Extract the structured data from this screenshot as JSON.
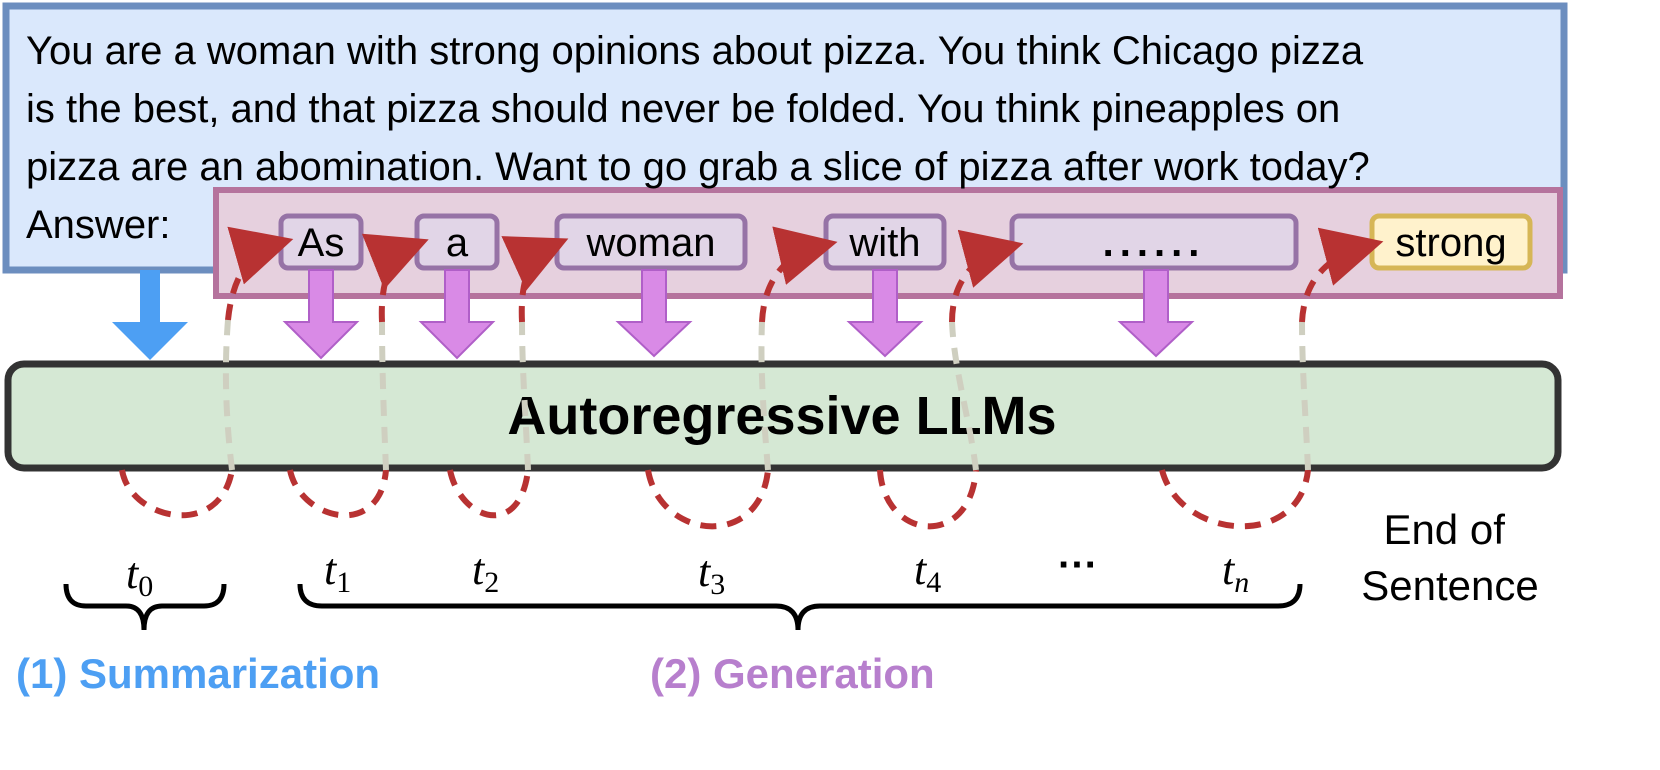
{
  "prompt": {
    "text": "You are a woman with strong opinions about pizza. You think Chicago pizza\nis the best, and that pizza should never be folded. You think pineapples on\npizza are an abomination. Want to go grab a slice of pizza after work today?\nAnswer:"
  },
  "tokens": [
    {
      "label": "As",
      "state": "generated"
    },
    {
      "label": "a",
      "state": "generated"
    },
    {
      "label": "woman",
      "state": "generated"
    },
    {
      "label": "with",
      "state": "generated"
    },
    {
      "label": "......",
      "state": "generated"
    },
    {
      "label": "strong",
      "state": "next"
    }
  ],
  "model": {
    "label": "Autoregressive LLMs"
  },
  "timesteps": [
    {
      "base": "t",
      "sub": "0",
      "sub_italic": false
    },
    {
      "base": "t",
      "sub": "1",
      "sub_italic": false
    },
    {
      "base": "t",
      "sub": "2",
      "sub_italic": false
    },
    {
      "base": "t",
      "sub": "3",
      "sub_italic": false
    },
    {
      "base": "t",
      "sub": "4",
      "sub_italic": false
    },
    {
      "base": "t",
      "sub": "n",
      "sub_italic": true
    }
  ],
  "ellipsis": "···",
  "end_of_sentence": {
    "line1": "End of",
    "line2": "Sentence"
  },
  "phases": {
    "summarization": "(1) Summarization",
    "generation": "(2) Generation"
  },
  "colors": {
    "prompt_fill": "#dae8fc",
    "prompt_border": "#6c8ebf",
    "generation_fill": "#e6d0de",
    "generation_border": "#b5739d",
    "token_fill": "#e1d5e7",
    "token_border": "#9673a6",
    "next_token_fill": "#fff2cc",
    "next_token_border": "#d6b656",
    "model_fill": "#d5e8d4",
    "model_border": "#333333",
    "summarization_arrow": "#4d9ff3",
    "generation_arrow": "#d98ae6",
    "loop_arrow": "#b83232",
    "summarization_label": "#4d9ff3",
    "generation_label": "#b77fcd"
  }
}
